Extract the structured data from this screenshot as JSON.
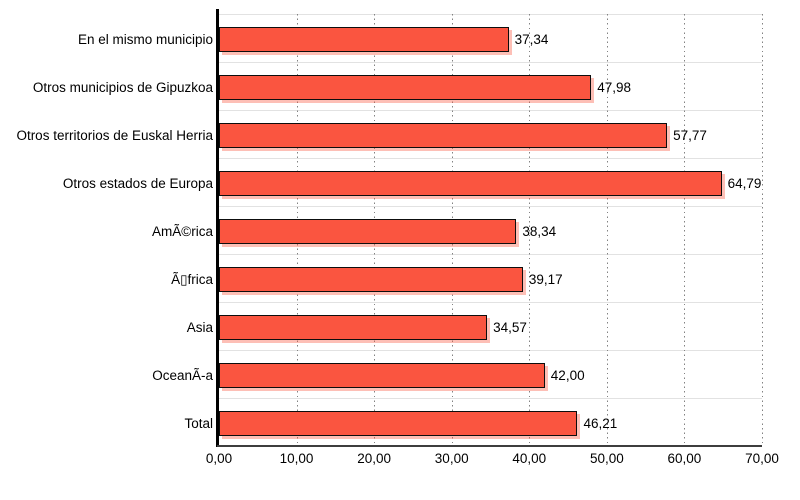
{
  "chart_data": {
    "type": "bar",
    "orientation": "horizontal",
    "title": "",
    "xlabel": "",
    "ylabel": "",
    "xlim": [
      0,
      70
    ],
    "grid": "vertical-dotted",
    "legend": "none",
    "categories": [
      "En el mismo municipio",
      "Otros municipios de Gipuzkoa",
      "Otros territorios de Euskal Herria",
      "Otros estados de Europa",
      "AmÃ©rica",
      "Ã▯frica",
      "Asia",
      "OceanÃ-a",
      "Total"
    ],
    "values": [
      37.34,
      47.98,
      57.77,
      64.79,
      38.34,
      39.17,
      34.57,
      42.0,
      46.21
    ],
    "value_labels": [
      "37,34",
      "47,98",
      "57,77",
      "64,79",
      "38,34",
      "39,17",
      "34,57",
      "42,00",
      "46,21"
    ],
    "x_tick_values": [
      0,
      10,
      20,
      30,
      40,
      50,
      60,
      70
    ],
    "x_tick_labels": [
      "0,00",
      "10,00",
      "20,00",
      "30,00",
      "40,00",
      "50,00",
      "60,00",
      "70,00"
    ],
    "colors": {
      "bar_fill": "#FA5540",
      "bar_border": "#0D0D0D",
      "bar_shadow": "#FBB9A9",
      "gridline_dotted": "#828282",
      "band_separator": "#E2E2E2",
      "y_axis_line": "#000000",
      "x_axis_line": "#3D3D3D",
      "text": "#000000",
      "background": "#FFFFFF"
    }
  }
}
